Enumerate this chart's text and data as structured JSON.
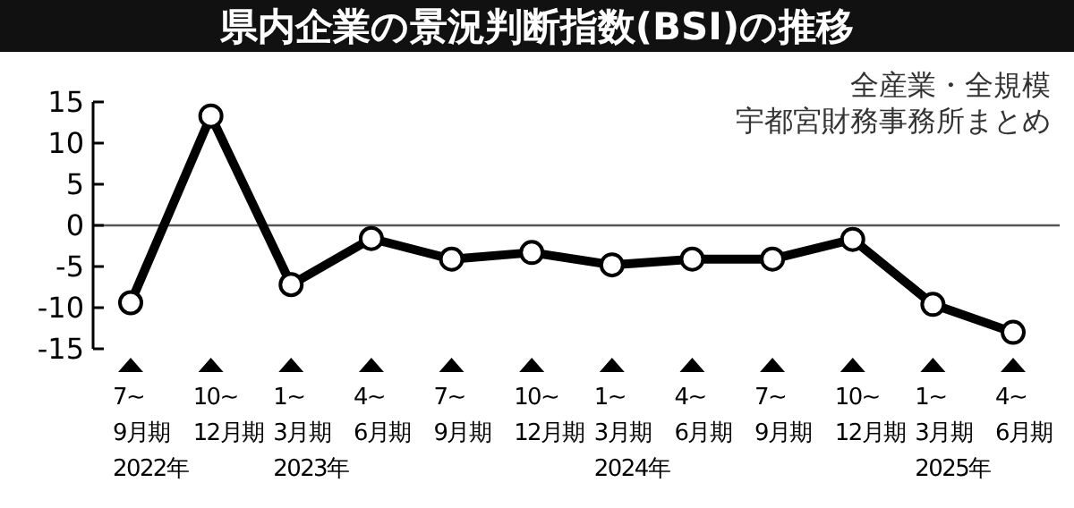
{
  "chart_data": {
    "type": "line",
    "title": "県内企業の景況判断指数(BSI)の推移",
    "annotations": [
      "全産業・全規模",
      "宇都宮財務事務所まとめ"
    ],
    "categories": [
      "7~\n9月期\n2022年",
      "10~\n12月期",
      "1~\n3月期\n2023年",
      "4~\n6月期",
      "7~\n9月期",
      "10~\n12月期",
      "1~\n3月期\n2024年",
      "4~\n6月期",
      "7~\n9月期",
      "10~\n12月期",
      "1~\n3月期\n2025年",
      "4~\n6月期"
    ],
    "series": [
      {
        "color": "#000000",
        "values": [
          -9.4,
          13.3,
          -7.2,
          -1.6,
          -4.1,
          -3.3,
          -4.8,
          -4.1,
          -4.1,
          -1.7,
          -9.6,
          -13.0
        ]
      }
    ],
    "ylim": [
      -15,
      15
    ],
    "yticks": [
      -15,
      -10,
      -5,
      0,
      5,
      10,
      15
    ],
    "ref_lines": [
      {
        "axis": "y",
        "value": 0,
        "color": "#555555"
      }
    ],
    "marker": "circle",
    "line_style": "solid"
  }
}
